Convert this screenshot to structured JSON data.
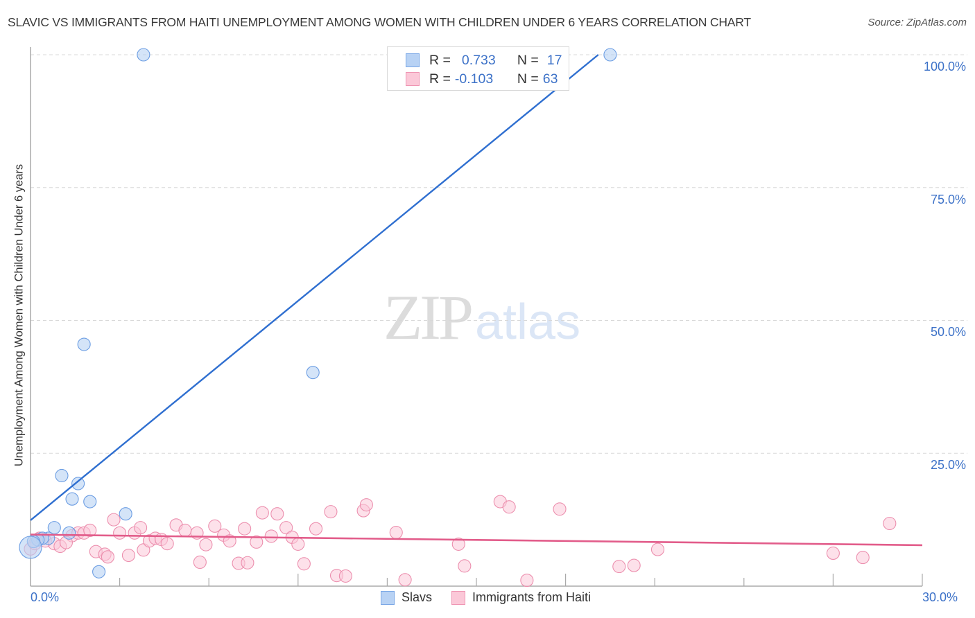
{
  "header": {
    "title": "SLAVIC VS IMMIGRANTS FROM HAITI UNEMPLOYMENT AMONG WOMEN WITH CHILDREN UNDER 6 YEARS CORRELATION CHART",
    "source": "Source: ZipAtlas.com"
  },
  "watermark": {
    "zip": "ZIP",
    "atlas": "atlas"
  },
  "legend_stats": [
    {
      "series": "Slavs",
      "r_label": "R =",
      "r_value": "0.733",
      "n_label": "N =",
      "n_value": "17",
      "color": "#b8d2f4",
      "border": "#7aa7e6"
    },
    {
      "series": "Immigrants from Haiti",
      "r_label": "R =",
      "r_value": "-0.103",
      "n_label": "N =",
      "n_value": "63",
      "color": "#fbc8d8",
      "border": "#ef95b3"
    }
  ],
  "axes": {
    "y_ticks": [
      "100.0%",
      "75.0%",
      "50.0%",
      "25.0%"
    ],
    "x_ticks": [
      "0.0%",
      "30.0%"
    ]
  },
  "colors": {
    "slavs_fill": "#b8d2f4",
    "slavs_stroke": "#6b9de3",
    "slavs_line": "#2f6fd0",
    "haiti_fill": "#fbc8d8",
    "haiti_stroke": "#ec8fae",
    "haiti_line": "#e25c8a",
    "tick_label": "#3d72c8",
    "grid": "#d8d8d8"
  },
  "chart_data": {
    "type": "scatter",
    "title": "SLAVIC VS IMMIGRANTS FROM HAITI UNEMPLOYMENT AMONG WOMEN WITH CHILDREN UNDER 6 YEARS CORRELATION CHART",
    "xlabel": "",
    "ylabel": "Unemployment Among Women with Children Under 6 years",
    "xlim": [
      0,
      30
    ],
    "ylim": [
      0,
      100
    ],
    "x_unit": "%",
    "y_unit": "%",
    "grid": true,
    "legend_position": "bottom",
    "series": [
      {
        "name": "Slavs",
        "r": 0.733,
        "n": 17,
        "points": [
          [
            3.8,
            100.0
          ],
          [
            19.5,
            100.0
          ],
          [
            1.8,
            45.5
          ],
          [
            9.5,
            40.2
          ],
          [
            1.05,
            20.8
          ],
          [
            1.6,
            19.3
          ],
          [
            1.4,
            16.4
          ],
          [
            2.0,
            15.9
          ],
          [
            3.2,
            13.6
          ],
          [
            0.8,
            11.0
          ],
          [
            1.3,
            10.0
          ],
          [
            0.6,
            9.0
          ],
          [
            0.4,
            9.0
          ],
          [
            0.25,
            8.7
          ],
          [
            0.1,
            8.4
          ],
          [
            0.0,
            7.3
          ],
          [
            2.3,
            2.7
          ]
        ],
        "trend": {
          "x": [
            0,
            19.1
          ],
          "y": [
            12.4,
            100.0
          ]
        }
      },
      {
        "name": "Immigrants from Haiti",
        "r": -0.103,
        "n": 63,
        "points": [
          [
            0.0,
            7.0
          ],
          [
            0.3,
            9.0
          ],
          [
            0.5,
            8.5
          ],
          [
            0.8,
            8.0
          ],
          [
            1.0,
            7.5
          ],
          [
            1.4,
            9.5
          ],
          [
            1.6,
            10.0
          ],
          [
            1.8,
            10.0
          ],
          [
            2.0,
            10.5
          ],
          [
            2.2,
            6.5
          ],
          [
            2.5,
            6.0
          ],
          [
            2.6,
            5.5
          ],
          [
            2.8,
            12.5
          ],
          [
            3.0,
            10.0
          ],
          [
            3.3,
            5.8
          ],
          [
            3.5,
            10.0
          ],
          [
            3.7,
            11.0
          ],
          [
            3.8,
            6.8
          ],
          [
            4.0,
            8.5
          ],
          [
            4.2,
            9.0
          ],
          [
            4.4,
            8.8
          ],
          [
            4.6,
            8.0
          ],
          [
            4.9,
            11.5
          ],
          [
            5.2,
            10.5
          ],
          [
            5.6,
            10.0
          ],
          [
            5.7,
            4.5
          ],
          [
            5.9,
            7.8
          ],
          [
            6.2,
            11.3
          ],
          [
            6.5,
            9.6
          ],
          [
            6.7,
            8.5
          ],
          [
            7.0,
            4.3
          ],
          [
            7.2,
            10.8
          ],
          [
            7.3,
            4.4
          ],
          [
            7.6,
            8.3
          ],
          [
            7.8,
            13.8
          ],
          [
            8.1,
            9.4
          ],
          [
            8.3,
            13.6
          ],
          [
            8.6,
            11.0
          ],
          [
            8.8,
            9.2
          ],
          [
            9.0,
            7.9
          ],
          [
            9.2,
            4.2
          ],
          [
            9.6,
            10.8
          ],
          [
            10.1,
            14.0
          ],
          [
            10.3,
            2.0
          ],
          [
            10.6,
            1.9
          ],
          [
            11.2,
            14.2
          ],
          [
            11.3,
            15.3
          ],
          [
            12.3,
            10.1
          ],
          [
            12.6,
            1.2
          ],
          [
            14.4,
            7.9
          ],
          [
            14.6,
            3.8
          ],
          [
            15.8,
            15.9
          ],
          [
            16.1,
            14.9
          ],
          [
            16.7,
            1.1
          ],
          [
            17.8,
            14.5
          ],
          [
            19.8,
            3.7
          ],
          [
            20.3,
            3.9
          ],
          [
            21.1,
            6.9
          ],
          [
            27.0,
            6.2
          ],
          [
            28.0,
            5.4
          ],
          [
            28.9,
            11.8
          ],
          [
            0.15,
            8.0
          ],
          [
            1.2,
            8.2
          ]
        ],
        "trend": {
          "x": [
            0,
            30
          ],
          "y": [
            9.7,
            7.7
          ]
        }
      }
    ]
  }
}
